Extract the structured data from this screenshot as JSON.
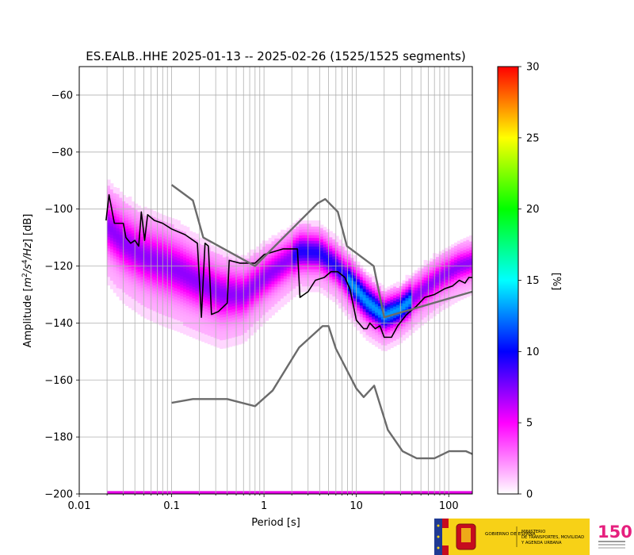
{
  "chart_data": {
    "type": "heatmap",
    "title": "ES.EALB..HHE   2025-01-13 -- 2025-02-26  (1525/1525 segments)",
    "xlabel": "Period [s]",
    "ylabel_parts": [
      "Amplitude [",
      "m",
      "2",
      "/",
      "s",
      "4",
      "/",
      "Hz",
      "] [dB]"
    ],
    "xscale": "log",
    "xlim": [
      0.01,
      180
    ],
    "ylim": [
      -200,
      -50
    ],
    "grid": true,
    "x_ticks": [
      {
        "v": 0.01,
        "label": "0.01"
      },
      {
        "v": 0.1,
        "label": "0.1"
      },
      {
        "v": 1,
        "label": "1"
      },
      {
        "v": 10,
        "label": "10"
      },
      {
        "v": 100,
        "label": "100"
      }
    ],
    "y_ticks": [
      -60,
      -80,
      -100,
      -120,
      -140,
      -160,
      -180,
      -200
    ],
    "colorbar": {
      "label": "[%]",
      "range": [
        0,
        30
      ],
      "ticks": [
        0,
        5,
        10,
        15,
        20,
        25,
        30
      ],
      "colormap": [
        "#ffffff",
        "#ff00ff",
        "#0000ff",
        "#00ffff",
        "#00ff00",
        "#ffff00",
        "#ff0000"
      ]
    },
    "density_band": [
      {
        "period": 0.02,
        "low": -126,
        "high": -90
      },
      {
        "period": 0.03,
        "low": -133,
        "high": -95
      },
      {
        "period": 0.05,
        "low": -138,
        "high": -100
      },
      {
        "period": 0.08,
        "low": -141,
        "high": -102
      },
      {
        "period": 0.12,
        "low": -143,
        "high": -105
      },
      {
        "period": 0.2,
        "low": -146,
        "high": -110
      },
      {
        "period": 0.35,
        "low": -149,
        "high": -115
      },
      {
        "period": 0.6,
        "low": -147,
        "high": -117
      },
      {
        "period": 1.0,
        "low": -140,
        "high": -112
      },
      {
        "period": 1.6,
        "low": -134,
        "high": -108
      },
      {
        "period": 2.5,
        "low": -129,
        "high": -104
      },
      {
        "period": 4.0,
        "low": -129,
        "high": -105
      },
      {
        "period": 6.0,
        "low": -133,
        "high": -110
      },
      {
        "period": 9.0,
        "low": -140,
        "high": -116
      },
      {
        "period": 13,
        "low": -146,
        "high": -122
      },
      {
        "period": 20,
        "low": -150,
        "high": -128
      },
      {
        "period": 30,
        "low": -147,
        "high": -126
      },
      {
        "period": 50,
        "low": -141,
        "high": -120
      },
      {
        "period": 80,
        "low": -136,
        "high": -115
      },
      {
        "period": 130,
        "low": -132,
        "high": -111
      },
      {
        "period": 180,
        "low": -130,
        "high": -110
      }
    ],
    "bottom_band": {
      "value": -199,
      "period_range": [
        0.02,
        180
      ]
    },
    "series": [
      {
        "role": "mode",
        "color": "#000000",
        "points": [
          [
            0.0195,
            -104
          ],
          [
            0.021,
            -95
          ],
          [
            0.024,
            -105
          ],
          [
            0.03,
            -105
          ],
          [
            0.032,
            -110
          ],
          [
            0.036,
            -112
          ],
          [
            0.04,
            -111
          ],
          [
            0.044,
            -113
          ],
          [
            0.047,
            -101
          ],
          [
            0.051,
            -111
          ],
          [
            0.055,
            -102
          ],
          [
            0.065,
            -104
          ],
          [
            0.08,
            -105
          ],
          [
            0.1,
            -107
          ],
          [
            0.14,
            -109
          ],
          [
            0.19,
            -112
          ],
          [
            0.21,
            -138
          ],
          [
            0.23,
            -112
          ],
          [
            0.25,
            -113
          ],
          [
            0.27,
            -137
          ],
          [
            0.32,
            -136
          ],
          [
            0.4,
            -133
          ],
          [
            0.42,
            -118
          ],
          [
            0.55,
            -119
          ],
          [
            0.8,
            -119
          ],
          [
            1.0,
            -116
          ],
          [
            1.6,
            -114
          ],
          [
            2.3,
            -114
          ],
          [
            2.45,
            -131
          ],
          [
            3.0,
            -129
          ],
          [
            3.6,
            -125
          ],
          [
            4.5,
            -124
          ],
          [
            5.3,
            -122
          ],
          [
            6.3,
            -122
          ],
          [
            7.5,
            -124
          ],
          [
            8.5,
            -128
          ],
          [
            10,
            -139
          ],
          [
            12,
            -142
          ],
          [
            13,
            -142
          ],
          [
            14,
            -140
          ],
          [
            16,
            -142
          ],
          [
            18,
            -141
          ],
          [
            20,
            -145
          ],
          [
            24,
            -145
          ],
          [
            28,
            -141
          ],
          [
            35,
            -137
          ],
          [
            45,
            -134
          ],
          [
            55,
            -131
          ],
          [
            70,
            -130
          ],
          [
            90,
            -128
          ],
          [
            110,
            -127
          ],
          [
            130,
            -125
          ],
          [
            150,
            -126
          ],
          [
            165,
            -124
          ],
          [
            180,
            -124
          ]
        ]
      },
      {
        "role": "high-noise-model",
        "color": "#6b6b6b",
        "points": [
          [
            0.1,
            -91.5
          ],
          [
            0.17,
            -97
          ],
          [
            0.22,
            -110
          ],
          [
            0.8,
            -120
          ],
          [
            3.8,
            -98
          ],
          [
            4.6,
            -96.5
          ],
          [
            6.3,
            -101
          ],
          [
            7.9,
            -113
          ],
          [
            15.4,
            -120
          ],
          [
            20,
            -138
          ],
          [
            180,
            -129
          ]
        ]
      },
      {
        "role": "low-noise-model",
        "color": "#6b6b6b",
        "points": [
          [
            0.1,
            -168
          ],
          [
            0.17,
            -166.7
          ],
          [
            0.4,
            -166.7
          ],
          [
            0.8,
            -169.2
          ],
          [
            1.24,
            -163.7
          ],
          [
            2.4,
            -148.6
          ],
          [
            4.3,
            -141.1
          ],
          [
            5.0,
            -141.1
          ],
          [
            6.0,
            -149
          ],
          [
            10,
            -163
          ],
          [
            12,
            -166
          ],
          [
            15.6,
            -162
          ],
          [
            21.9,
            -177.5
          ],
          [
            31.6,
            -185
          ],
          [
            45,
            -187.5
          ],
          [
            70,
            -187.5
          ],
          [
            101,
            -185
          ],
          [
            154,
            -185
          ],
          [
            180,
            -186
          ]
        ]
      }
    ]
  },
  "logos": {
    "gobierno": "GOBIERNO DE ESPAÑA",
    "ministerio": [
      "MINISTERIO",
      "DE TRANSPORTES, MOVILIDAD",
      "Y AGENDA URBANA"
    ],
    "ign_number": "150"
  }
}
